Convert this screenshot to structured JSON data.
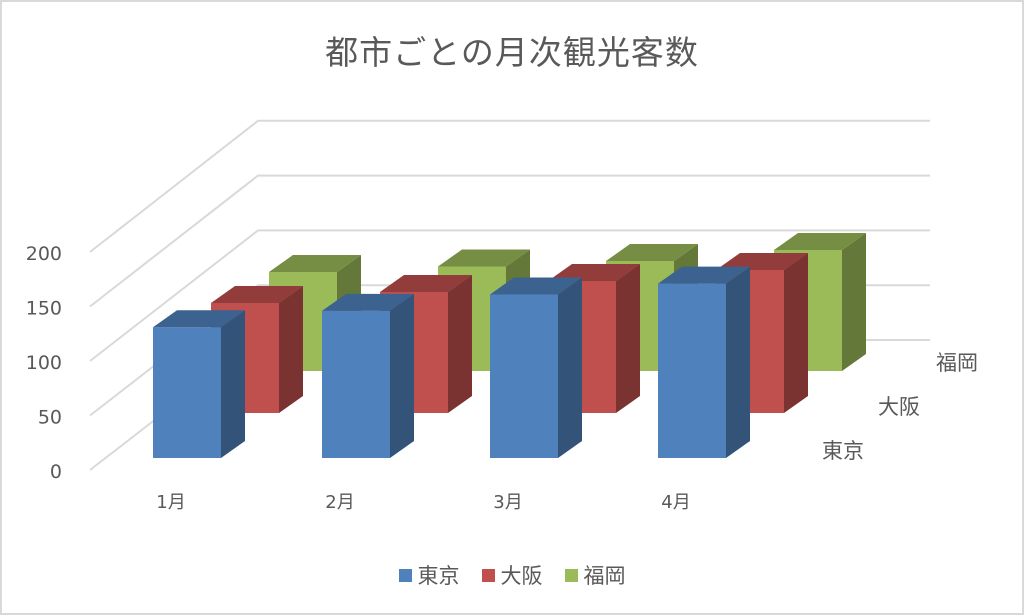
{
  "chart": {
    "title": "都市ごとの月次観光客数",
    "y_ticks": [
      "0",
      "50",
      "100",
      "150",
      "200"
    ],
    "legend": [
      {
        "name": "東京",
        "color": "#4f81bd"
      },
      {
        "name": "大阪",
        "color": "#c0504d"
      },
      {
        "name": "福岡",
        "color": "#9bbb59"
      }
    ]
  },
  "chart_data": {
    "type": "bar",
    "subtype": "3d-column",
    "title": "都市ごとの月次観光客数",
    "categories": [
      "1月",
      "2月",
      "3月",
      "4月"
    ],
    "series": [
      {
        "name": "東京",
        "values": [
          120,
          135,
          150,
          160
        ],
        "color": "#4f81bd"
      },
      {
        "name": "大阪",
        "values": [
          100,
          110,
          120,
          130
        ],
        "color": "#c0504d"
      },
      {
        "name": "福岡",
        "values": [
          90,
          95,
          100,
          110
        ],
        "color": "#9bbb59"
      }
    ],
    "xlabel": "",
    "ylabel": "",
    "ylim": [
      0,
      200
    ],
    "y_ticks": [
      0,
      50,
      100,
      150,
      200
    ],
    "grid": true,
    "legend_position": "bottom",
    "depth_axis_labels": [
      "東京",
      "大阪",
      "福岡"
    ]
  }
}
